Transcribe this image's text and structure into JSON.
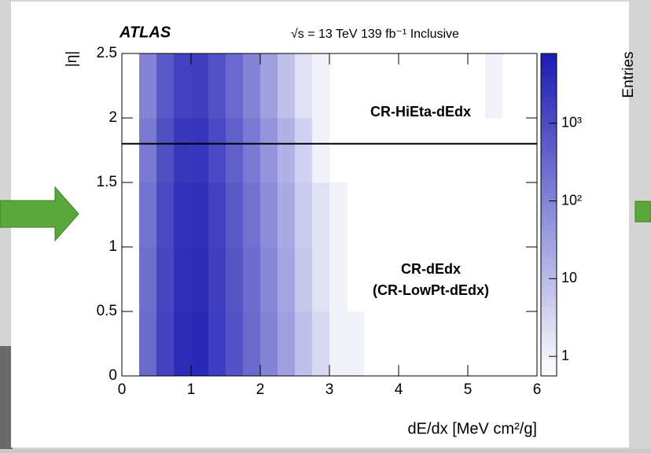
{
  "chart_data": {
    "type": "heatmap",
    "title": "ATLAS",
    "subtitle": "√s = 13 TeV  139 fb⁻¹ Inclusive",
    "x_label": "dE/dx [MeV cm²/g]",
    "y_label": "|η|",
    "z_label": "Entries",
    "annotations": [
      "CR-HiEta-dEdx",
      "CR-dEdx",
      "(CR-LowPt-dEdx)"
    ],
    "hline": 1.8,
    "xbins": [
      0,
      0.25,
      0.5,
      0.75,
      1,
      1.25,
      1.5,
      1.75,
      2,
      2.25,
      2.5,
      2.75,
      3,
      3.25,
      3.5,
      3.75,
      4,
      4.25,
      4.5,
      4.75,
      5,
      5.25,
      5.5,
      5.75,
      6
    ],
    "ybins": [
      0,
      0.5,
      1,
      1.5,
      2,
      2.5
    ],
    "z": [
      [
        null,
        300,
        1500,
        4000,
        4500,
        2000,
        800,
        300,
        100,
        30,
        8,
        3,
        1,
        1,
        null,
        null,
        null,
        null,
        null,
        null,
        null,
        null,
        null,
        null
      ],
      [
        null,
        250,
        1300,
        3600,
        4000,
        1800,
        700,
        260,
        90,
        25,
        6,
        2,
        1,
        null,
        null,
        null,
        null,
        null,
        null,
        null,
        null,
        null,
        null,
        null
      ],
      [
        null,
        200,
        1200,
        3200,
        3600,
        1600,
        600,
        220,
        70,
        20,
        5,
        2,
        1,
        null,
        null,
        null,
        null,
        null,
        null,
        null,
        null,
        null,
        null,
        null
      ],
      [
        null,
        150,
        900,
        2400,
        2700,
        1200,
        450,
        160,
        50,
        15,
        4,
        1,
        null,
        null,
        null,
        null,
        null,
        null,
        null,
        null,
        null,
        null,
        null,
        null
      ],
      [
        null,
        100,
        600,
        1600,
        1800,
        800,
        300,
        100,
        30,
        8,
        2,
        1,
        null,
        null,
        null,
        null,
        null,
        null,
        null,
        null,
        null,
        1,
        null,
        null
      ]
    ],
    "xlim": [
      0,
      6
    ],
    "xticks": [
      0,
      1,
      2,
      3,
      4,
      5,
      6
    ],
    "ylim": [
      0,
      2.5
    ],
    "yticks": [
      0,
      0.5,
      1,
      1.5,
      2,
      2.5
    ],
    "zlim": [
      0.56,
      7900
    ],
    "zlog": true,
    "zticks": [
      1,
      10,
      {
        "value": 100,
        "label": "10²"
      },
      {
        "value": 1000,
        "label": "10³"
      }
    ],
    "colormap": [
      "#ffffff",
      "#1c1cb4"
    ]
  }
}
